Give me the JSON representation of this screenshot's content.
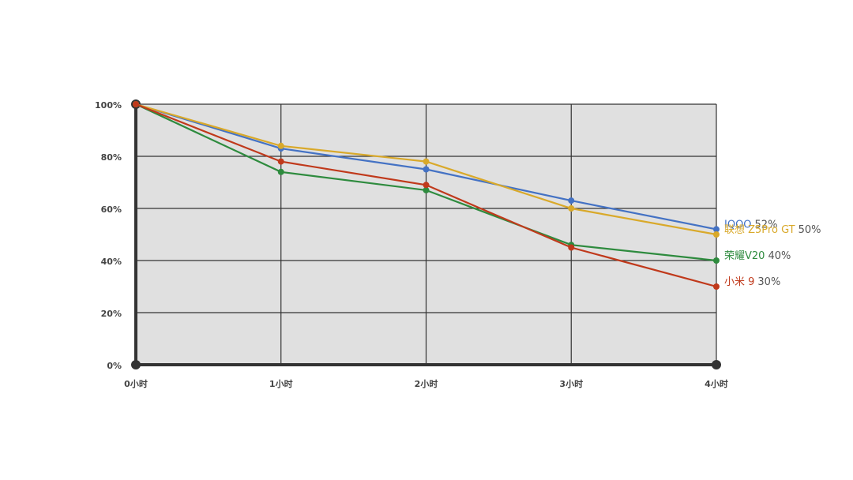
{
  "chart_data": {
    "type": "line",
    "categories": [
      "0小时",
      "1小时",
      "2小时",
      "3小时",
      "4小时"
    ],
    "ylim": [
      0,
      100
    ],
    "yticks": [
      {
        "value": 0,
        "label": "0%"
      },
      {
        "value": 20,
        "label": "20%"
      },
      {
        "value": 40,
        "label": "40%"
      },
      {
        "value": 60,
        "label": "60%"
      },
      {
        "value": 80,
        "label": "80%"
      },
      {
        "value": 100,
        "label": "100%"
      }
    ],
    "grid": true,
    "series": [
      {
        "name": "IQOO",
        "color": "#4472c4",
        "values": [
          100,
          83,
          75,
          63,
          52
        ],
        "value_labels": [
          null,
          null,
          null,
          null,
          "52%"
        ]
      },
      {
        "name": "联想 Z5Pro GT",
        "color": "#d9a92a",
        "values": [
          100,
          84,
          78,
          60,
          50
        ],
        "value_labels": [
          null,
          null,
          null,
          null,
          "50%"
        ]
      },
      {
        "name": "荣耀V20",
        "color": "#2e8b3e",
        "values": [
          100,
          74,
          67,
          46,
          40
        ],
        "value_labels": [
          null,
          null,
          null,
          null,
          "40%"
        ]
      },
      {
        "name": "小米 9",
        "color": "#c0391b",
        "values": [
          100,
          78,
          69,
          45,
          30
        ],
        "value_labels": [
          null,
          null,
          null,
          null,
          "30%"
        ]
      }
    ]
  }
}
